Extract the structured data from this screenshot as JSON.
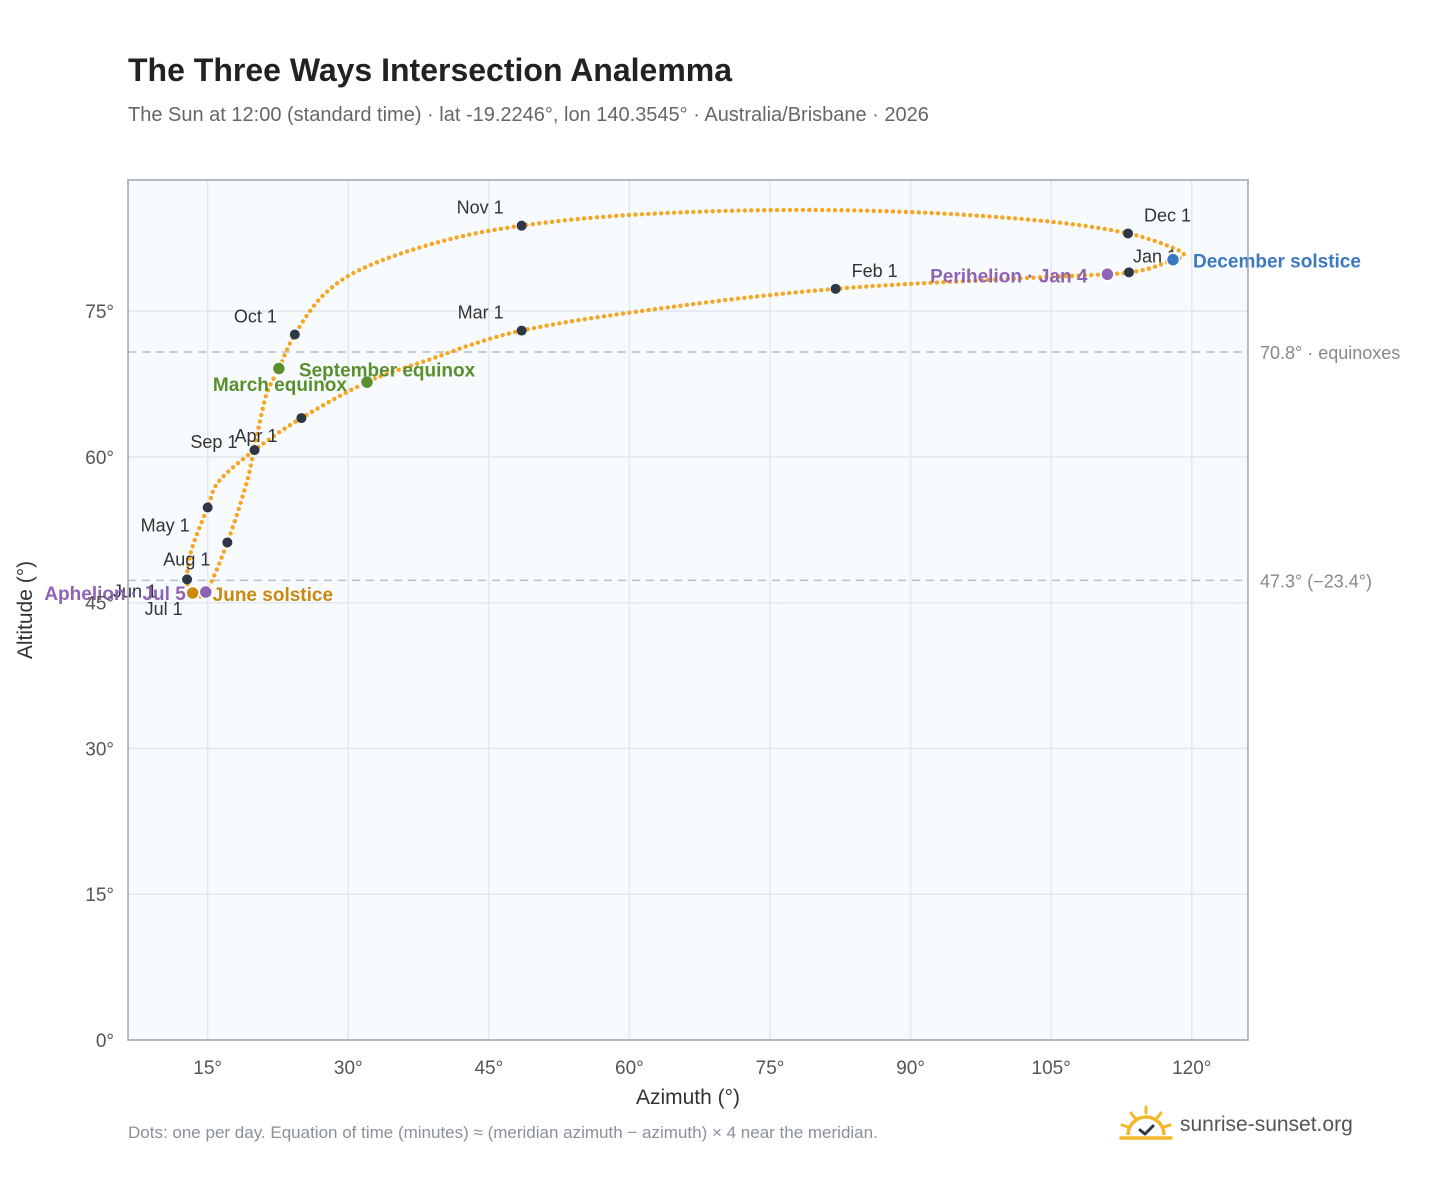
{
  "header": {
    "title": "The Three Ways Intersection Analemma",
    "subtitle": "The Sun at 12:00 (standard time) · lat -19.2246°, lon 140.3545° · Australia/Brisbane · 2026"
  },
  "footer": {
    "note": "Dots: one per day. Equation of time (minutes) ≈ (meridian azimuth − azimuth) × 4 near the meridian.",
    "brand": "sunrise-sunset.org"
  },
  "colors": {
    "curve": "#f5a623",
    "month_marker": "#2d3748",
    "equinox": "#5a8f2e",
    "june_solstice": "#c98a0f",
    "december_solstice": "#3a78c2",
    "apsis": "#8e63b5",
    "plot_bg": "#f8fbfd",
    "grid": "#e3e8ee",
    "ref_line": "#b8bec6"
  },
  "chart_data": {
    "type": "scatter",
    "xlabel": "Azimuth (°)",
    "ylabel": "Altitude (°)",
    "xlim": [
      6.5,
      126
    ],
    "ylim": [
      0,
      88.5
    ],
    "xticks": [
      15,
      30,
      45,
      60,
      75,
      90,
      105,
      120
    ],
    "yticks": [
      0,
      15,
      30,
      45,
      60,
      75
    ],
    "x_tick_labels": [
      "15°",
      "30°",
      "45°",
      "60°",
      "75°",
      "90°",
      "105°",
      "120°"
    ],
    "y_tick_labels": [
      "0°",
      "15°",
      "30°",
      "45°",
      "60°",
      "75°"
    ],
    "grid": true,
    "reference_lines": [
      {
        "altitude": 70.8,
        "label": "70.8° · equinoxes"
      },
      {
        "altitude": 47.3,
        "label": "47.3° (−23.4°)"
      }
    ],
    "path_keypoints": [
      {
        "x": 118.0,
        "y": 80.3
      },
      {
        "x": 115.5,
        "y": 79.4
      },
      {
        "x": 113.3,
        "y": 79.0
      },
      {
        "x": 111.0,
        "y": 78.8
      },
      {
        "x": 100.0,
        "y": 78.3
      },
      {
        "x": 82.0,
        "y": 77.3
      },
      {
        "x": 65.0,
        "y": 75.5
      },
      {
        "x": 48.5,
        "y": 73.0
      },
      {
        "x": 38.0,
        "y": 69.8
      },
      {
        "x": 32.0,
        "y": 67.7
      },
      {
        "x": 25.0,
        "y": 64.0
      },
      {
        "x": 20.0,
        "y": 60.7
      },
      {
        "x": 16.2,
        "y": 57.5
      },
      {
        "x": 15.0,
        "y": 54.8
      },
      {
        "x": 13.3,
        "y": 50.5
      },
      {
        "x": 12.8,
        "y": 47.4
      },
      {
        "x": 13.4,
        "y": 46.0
      },
      {
        "x": 14.8,
        "y": 46.1
      },
      {
        "x": 17.1,
        "y": 51.2
      },
      {
        "x": 19.2,
        "y": 57.5
      },
      {
        "x": 20.2,
        "y": 62.0
      },
      {
        "x": 21.3,
        "y": 66.5
      },
      {
        "x": 22.6,
        "y": 69.1
      },
      {
        "x": 24.3,
        "y": 72.6
      },
      {
        "x": 27.5,
        "y": 76.8
      },
      {
        "x": 32.0,
        "y": 79.6
      },
      {
        "x": 40.0,
        "y": 82.2
      },
      {
        "x": 48.5,
        "y": 83.8
      },
      {
        "x": 60.0,
        "y": 84.9
      },
      {
        "x": 75.0,
        "y": 85.4
      },
      {
        "x": 90.0,
        "y": 85.2
      },
      {
        "x": 104.0,
        "y": 84.3
      },
      {
        "x": 113.2,
        "y": 83.0
      },
      {
        "x": 118.5,
        "y": 81.3
      },
      {
        "x": 119.0,
        "y": 80.6
      },
      {
        "x": 118.0,
        "y": 80.3
      }
    ],
    "month_markers": [
      {
        "label": "Jan 1",
        "x": 113.3,
        "y": 79.0
      },
      {
        "label": "Feb 1",
        "x": 82.0,
        "y": 77.3
      },
      {
        "label": "Mar 1",
        "x": 48.5,
        "y": 73.0
      },
      {
        "label": "Apr 1",
        "x": 20.0,
        "y": 60.7
      },
      {
        "label": "May 1",
        "x": 15.0,
        "y": 54.8
      },
      {
        "label": "Jun 1",
        "x": 12.8,
        "y": 47.4
      },
      {
        "label": "Jul 1",
        "x": 13.4,
        "y": 46.0
      },
      {
        "label": "Aug 1",
        "x": 17.1,
        "y": 51.2
      },
      {
        "label": "Sep 1",
        "x": 25.0,
        "y": 64.0
      },
      {
        "label": "Oct 1",
        "x": 24.3,
        "y": 72.6
      },
      {
        "label": "Nov 1",
        "x": 48.5,
        "y": 83.8
      },
      {
        "label": "Dec 1",
        "x": 113.2,
        "y": 83.0
      }
    ],
    "events": [
      {
        "label": "December solstice",
        "x": 118.0,
        "y": 80.3,
        "kind": "december_solstice"
      },
      {
        "label": "Perihelion · Jan 4",
        "x": 111.0,
        "y": 78.8,
        "kind": "apsis"
      },
      {
        "label": "March equinox",
        "x": 32.0,
        "y": 67.7,
        "kind": "equinox"
      },
      {
        "label": "September equinox",
        "x": 22.6,
        "y": 69.1,
        "kind": "equinox"
      },
      {
        "label": "June solstice",
        "x": 13.4,
        "y": 46.0,
        "kind": "june_solstice"
      },
      {
        "label": "Aphelion · Jul 5",
        "x": 14.8,
        "y": 46.1,
        "kind": "apsis"
      }
    ]
  }
}
